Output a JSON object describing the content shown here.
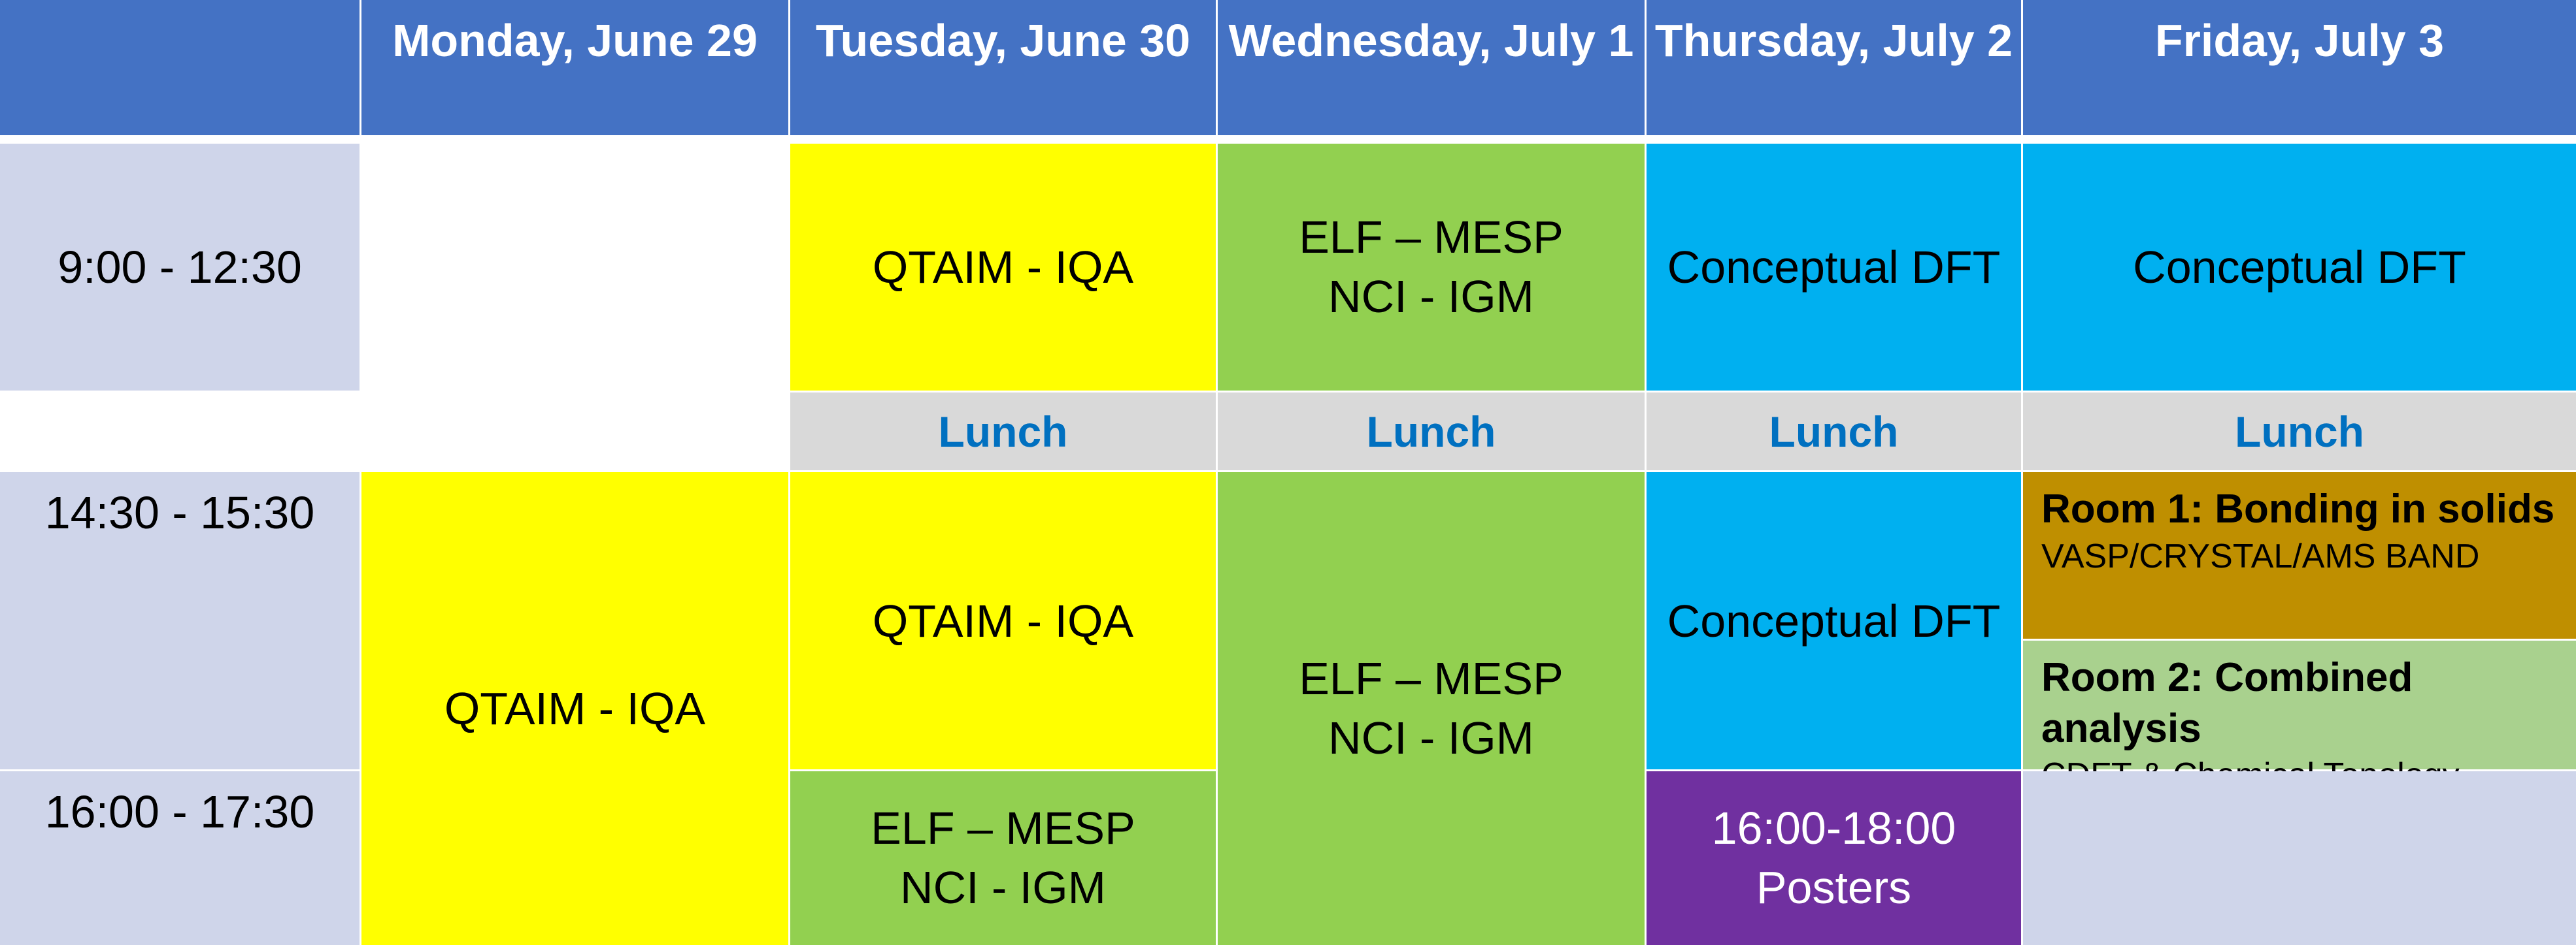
{
  "headers": [
    "",
    "Monday, June 29",
    "Tuesday, June 30",
    "Wednesday, July 1",
    "Thursday, July 2",
    "Friday, July 3"
  ],
  "times": {
    "morning": "9:00 - 12:30",
    "afternoon1": "14:30 - 15:30",
    "afternoon2": "16:00 - 17:30"
  },
  "lunch_label": "Lunch",
  "morning": {
    "tuesday": "QTAIM - IQA",
    "wednesday": [
      "ELF – MESP",
      "NCI - IGM"
    ],
    "thursday": "Conceptual DFT",
    "friday": "Conceptual DFT"
  },
  "afternoon": {
    "monday": "QTAIM - IQA",
    "tuesday_1": "QTAIM - IQA",
    "tuesday_2": [
      "ELF – MESP",
      "NCI - IGM"
    ],
    "wednesday": [
      "ELF – MESP",
      "NCI - IGM"
    ],
    "thursday_1": "Conceptual DFT",
    "thursday_2": [
      "16:00-18:00",
      "Posters"
    ],
    "friday_room1": {
      "title": "Room 1: Bonding in solids",
      "subtitle": "VASP/CRYSTAL/AMS BAND"
    },
    "friday_room2": {
      "title": "Room 2: Combined analysis",
      "subtitle": "CDFT & Chemical Topology"
    }
  },
  "colors": {
    "header": "#4472c4",
    "time": "#cfd5ea",
    "qtaim": "#ffff00",
    "elf": "#92d050",
    "cdft": "#00b0f0",
    "posters": "#7030a0",
    "lunch_bg": "#d9d9d9",
    "lunch_text": "#0070c0",
    "room1": "#bf8f00",
    "room2": "#a9d18e"
  }
}
